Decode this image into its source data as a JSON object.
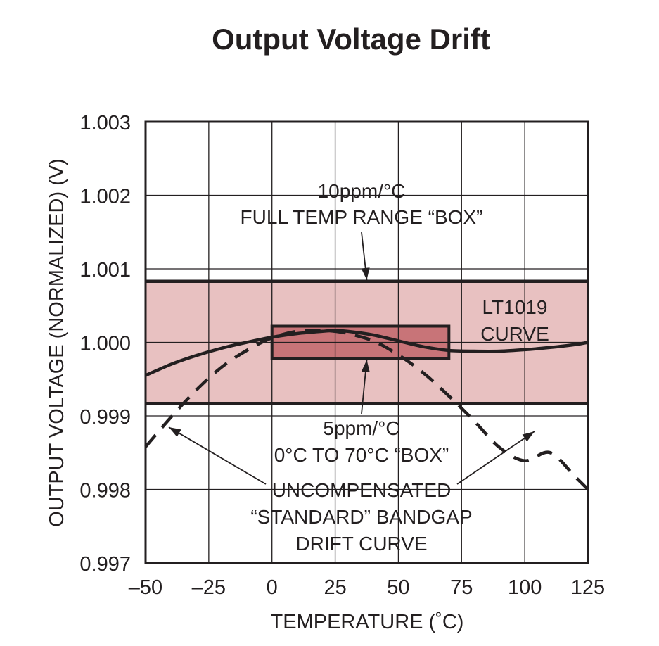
{
  "chart_data": {
    "type": "line",
    "title": "Output Voltage Drift",
    "xlabel": "TEMPERATURE (˚C)",
    "ylabel": "OUTPUT VOLTAGE (NORMALIZED) (V)",
    "xlim": [
      -50,
      125
    ],
    "ylim": [
      0.997,
      1.003
    ],
    "x_ticks": [
      -50,
      -25,
      0,
      25,
      50,
      75,
      100,
      125
    ],
    "x_tick_labels": [
      "–50",
      "–25",
      "0",
      "25",
      "50",
      "75",
      "100",
      "125"
    ],
    "y_ticks": [
      0.997,
      0.998,
      0.999,
      1.0,
      1.001,
      1.002,
      1.003
    ],
    "y_tick_labels": [
      "0.997",
      "0.998",
      "0.999",
      "1.000",
      "1.001",
      "1.002",
      "1.003"
    ],
    "grid": true,
    "series": [
      {
        "name": "LT1019 CURVE",
        "style": "solid",
        "x": [
          -50,
          -40,
          -30,
          -20,
          -10,
          0,
          10,
          20,
          25,
          30,
          40,
          50,
          60,
          70,
          80,
          90,
          100,
          110,
          120,
          125
        ],
        "y": [
          0.99955,
          0.9997,
          0.99982,
          0.99992,
          1.0,
          1.00007,
          1.00012,
          1.00015,
          1.00016,
          1.00015,
          1.0001,
          1.00002,
          0.99994,
          0.99989,
          0.99988,
          0.99988,
          0.9999,
          0.99993,
          0.99997,
          1.0
        ]
      },
      {
        "name": "UNCOMPENSATED “STANDARD” BANDGAP DRIFT CURVE",
        "style": "dashed",
        "x": [
          -50,
          -40,
          -30,
          -20,
          -10,
          0,
          10,
          20,
          25,
          30,
          40,
          50,
          60,
          70,
          80,
          90,
          100,
          110,
          120,
          125
        ],
        "y": [
          0.99858,
          0.99898,
          0.99935,
          0.99966,
          0.99989,
          1.00006,
          1.00015,
          1.00016,
          1.00015,
          1.00012,
          1.00002,
          0.99983,
          0.99958,
          0.99927,
          0.99893,
          0.99857,
          0.99839,
          0.9985,
          0.99817,
          0.998
        ]
      }
    ],
    "boxes": [
      {
        "name": "10ppm/°C full temp range box",
        "x_range": [
          -50,
          125
        ],
        "y_range": [
          0.99917,
          1.00083
        ],
        "color": "#e8c1c1"
      },
      {
        "name": "5ppm/°C 0°C to 70°C box",
        "x_range": [
          0,
          70
        ],
        "y_range": [
          0.99978,
          1.00022
        ],
        "color": "#c87478"
      }
    ],
    "annotations": [
      {
        "lines": [
          "10ppm/°C",
          "FULL TEMP RANGE “BOX”"
        ]
      },
      {
        "lines": [
          "LT1019",
          "CURVE"
        ]
      },
      {
        "lines": [
          "5ppm/°C",
          "0°C TO 70°C “BOX”"
        ]
      },
      {
        "lines": [
          "UNCOMPENSATED",
          "“STANDARD” BANDGAP",
          "DRIFT CURVE"
        ]
      }
    ],
    "colors": {
      "ink": "#231f20",
      "grid": "#231f20"
    }
  }
}
